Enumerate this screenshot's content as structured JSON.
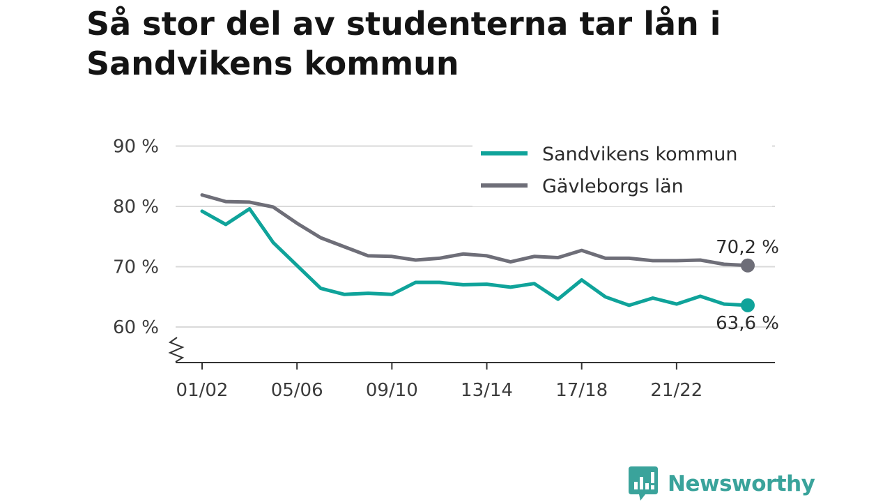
{
  "chart_data": {
    "type": "line",
    "title": "Så stor del av studenterna tar lån i Sandvikens kommun",
    "xlabel": "",
    "ylabel": "",
    "ylim": [
      54,
      90
    ],
    "yticks": [
      60,
      70,
      80,
      90
    ],
    "ytick_labels": [
      "60 %",
      "70 %",
      "80 %",
      "90 %"
    ],
    "broken_y_axis": true,
    "x": [
      "01/02",
      "02/03",
      "03/04",
      "04/05",
      "05/06",
      "06/07",
      "07/08",
      "08/09",
      "09/10",
      "10/11",
      "11/12",
      "12/13",
      "13/14",
      "14/15",
      "15/16",
      "16/17",
      "17/18",
      "18/19",
      "19/20",
      "20/21",
      "21/22",
      "22/23",
      "23/24",
      "24/25"
    ],
    "xtick_labels": [
      "01/02",
      "05/06",
      "09/10",
      "13/14",
      "17/18",
      "21/22"
    ],
    "grid": "horizontal",
    "legend_position": "top-right",
    "series": [
      {
        "name": "Sandvikens kommun",
        "color": "#0fa39a",
        "values": [
          79.2,
          77.0,
          79.6,
          74.0,
          70.2,
          66.4,
          65.4,
          65.6,
          65.4,
          67.4,
          67.4,
          67.0,
          67.1,
          66.6,
          67.2,
          64.6,
          67.8,
          65.0,
          63.6,
          64.8,
          63.8,
          65.1,
          63.8,
          63.6
        ],
        "end_label": "63,6 %"
      },
      {
        "name": "Gävleborgs län",
        "color": "#6e6e78",
        "values": [
          81.9,
          80.8,
          80.7,
          79.9,
          77.2,
          74.8,
          73.3,
          71.8,
          71.7,
          71.1,
          71.4,
          72.1,
          71.8,
          70.8,
          71.7,
          71.5,
          72.7,
          71.4,
          71.4,
          71.0,
          71.0,
          71.1,
          70.4,
          70.2
        ],
        "end_label": "70,2 %"
      }
    ]
  },
  "brand": {
    "name": "Newsworthy",
    "logo_icon": "newsworthy-bars-icon",
    "color": "#3aa39b"
  }
}
